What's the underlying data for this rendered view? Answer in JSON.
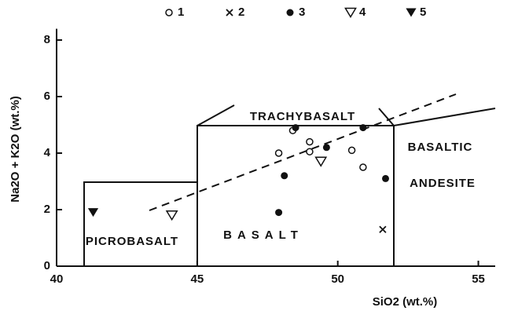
{
  "chart_data": {
    "type": "scatter",
    "xlabel": "SiO2 (wt.%)",
    "ylabel": "Na2O + K2O (wt.%)",
    "xlim": [
      40,
      55.6
    ],
    "xticks": [
      40,
      45,
      50,
      55
    ],
    "ylim": [
      0,
      8.4
    ],
    "yticks": [
      0,
      2,
      4,
      6,
      8
    ],
    "annotations": [
      "TRACHYBASALT",
      "BASALTIC",
      "ANDESITE",
      "PICROBASALT",
      "BASALT"
    ],
    "series": [
      {
        "name": "1",
        "color": "#111",
        "marker": "open-circle",
        "x": [
          48.4,
          47.9,
          49.0,
          49.0,
          50.5,
          50.9
        ],
        "values": [
          4.8,
          4.0,
          4.4,
          4.05,
          4.1,
          3.5
        ]
      },
      {
        "name": "2",
        "color": "#111",
        "marker": "cross",
        "x": [
          51.6
        ],
        "values": [
          1.3
        ]
      },
      {
        "name": "3",
        "color": "#111",
        "marker": "circle",
        "x": [
          48.5,
          48.1,
          49.6,
          50.9,
          51.7,
          47.9
        ],
        "values": [
          4.9,
          3.2,
          4.2,
          4.9,
          3.1,
          1.9
        ]
      },
      {
        "name": "4",
        "color": "#111",
        "marker": "open-triangle",
        "x": [
          49.4,
          44.1
        ],
        "values": [
          3.7,
          1.8
        ]
      },
      {
        "name": "5",
        "color": "#111",
        "marker": "triangle",
        "x": [
          41.3
        ],
        "values": [
          1.9
        ]
      }
    ]
  }
}
